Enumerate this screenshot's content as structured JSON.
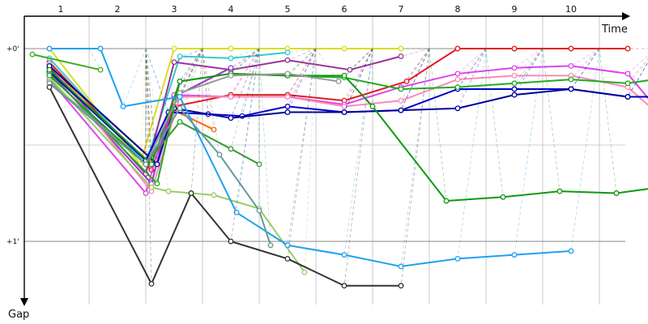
{
  "chart_data": {
    "type": "line",
    "xlabel": "Time",
    "ylabel": "Gap",
    "x_ticks": [
      "1",
      "2",
      "3",
      "4",
      "5",
      "6",
      "7",
      "8",
      "9",
      "10"
    ],
    "y_ticks": [
      "+0'",
      "+1'"
    ],
    "grid": true,
    "series": [
      {
        "color": "#e31a1c",
        "points": [
          [
            0.3,
            0.07
          ],
          [
            2.1,
            0.63
          ],
          [
            2.5,
            0.3
          ],
          [
            3.5,
            0.24
          ],
          [
            4.5,
            0.24
          ],
          [
            5.5,
            0.27
          ],
          [
            6.6,
            0.17
          ],
          [
            7.5,
            0.0
          ],
          [
            8.5,
            0.0
          ],
          [
            9.5,
            0.0
          ],
          [
            10.5,
            0.0
          ]
        ]
      },
      {
        "color": "#ff6600",
        "points": [
          [
            0.3,
            0.1
          ],
          [
            2.1,
            0.57
          ],
          [
            2.5,
            0.32
          ],
          [
            3.2,
            0.42
          ]
        ]
      },
      {
        "color": "#dddd22",
        "points": [
          [
            0.3,
            0.0
          ],
          [
            1.9,
            0.6
          ],
          [
            2.5,
            0.0
          ],
          [
            3.5,
            0.0
          ],
          [
            4.5,
            0.0
          ],
          [
            5.5,
            0.0
          ],
          [
            6.5,
            0.0
          ]
        ]
      },
      {
        "color": "#33cccc",
        "points": [
          [
            0.3,
            0.05
          ],
          [
            2.0,
            0.6
          ],
          [
            2.6,
            0.04
          ],
          [
            3.5,
            0.05
          ],
          [
            4.5,
            0.02
          ]
        ]
      },
      {
        "color": "#993399",
        "points": [
          [
            0.3,
            0.1
          ],
          [
            2.0,
            0.65
          ],
          [
            2.5,
            0.07
          ],
          [
            3.5,
            0.11
          ],
          [
            4.5,
            0.06
          ],
          [
            5.6,
            0.11
          ],
          [
            6.5,
            0.04
          ]
        ]
      },
      {
        "color": "#9933cc",
        "points": [
          [
            0.3,
            0.12
          ],
          [
            2.1,
            0.7
          ],
          [
            2.5,
            0.25
          ],
          [
            3.5,
            0.1
          ]
        ]
      },
      {
        "color": "#dd44ee",
        "points": [
          [
            0.3,
            0.16
          ],
          [
            2.0,
            0.75
          ],
          [
            2.5,
            0.24
          ],
          [
            3.5,
            0.25
          ],
          [
            4.5,
            0.25
          ],
          [
            5.5,
            0.29
          ],
          [
            6.5,
            0.2
          ],
          [
            7.5,
            0.13
          ],
          [
            8.5,
            0.1
          ],
          [
            9.5,
            0.09
          ],
          [
            10.5,
            0.13
          ],
          [
            11.2,
            0.38
          ]
        ]
      },
      {
        "color": "#ff88bb",
        "points": [
          [
            0.3,
            0.08
          ],
          [
            2.1,
            0.74
          ],
          [
            2.6,
            0.25
          ],
          [
            3.5,
            0.25
          ],
          [
            4.5,
            0.25
          ],
          [
            5.5,
            0.3
          ],
          [
            6.5,
            0.27
          ],
          [
            7.5,
            0.16
          ],
          [
            8.5,
            0.14
          ],
          [
            9.5,
            0.14
          ],
          [
            10.5,
            0.2
          ],
          [
            11.2,
            0.38
          ]
        ]
      },
      {
        "color": "#0000cc",
        "points": [
          [
            0.3,
            0.12
          ],
          [
            2.0,
            0.58
          ],
          [
            2.4,
            0.33
          ],
          [
            3.1,
            0.34
          ],
          [
            3.7,
            0.35
          ],
          [
            4.5,
            0.3
          ],
          [
            5.5,
            0.33
          ],
          [
            6.5,
            0.32
          ],
          [
            7.5,
            0.21
          ],
          [
            8.5,
            0.21
          ],
          [
            9.5,
            0.21
          ],
          [
            10.5,
            0.25
          ],
          [
            11.2,
            0.25
          ]
        ]
      },
      {
        "color": "#000099",
        "points": [
          [
            0.3,
            0.09
          ],
          [
            2.2,
            0.6
          ],
          [
            2.5,
            0.31
          ],
          [
            3.5,
            0.36
          ],
          [
            4.5,
            0.33
          ],
          [
            5.5,
            0.33
          ],
          [
            6.5,
            0.32
          ],
          [
            7.5,
            0.31
          ],
          [
            8.5,
            0.24
          ],
          [
            9.5,
            0.21
          ],
          [
            10.5,
            0.25
          ]
        ]
      },
      {
        "color": "#22aa22",
        "points": [
          [
            0.3,
            0.13
          ],
          [
            2.2,
            0.7
          ],
          [
            2.6,
            0.17
          ],
          [
            3.5,
            0.13
          ],
          [
            4.5,
            0.14
          ],
          [
            5.5,
            0.15
          ],
          [
            6.5,
            0.21
          ],
          [
            7.5,
            0.2
          ],
          [
            8.5,
            0.18
          ],
          [
            9.5,
            0.16
          ],
          [
            10.5,
            0.18
          ],
          [
            11.2,
            0.15
          ]
        ]
      },
      {
        "color": "#119911",
        "points": [
          [
            0.3,
            0.11
          ],
          [
            2.1,
            0.6
          ],
          [
            2.6,
            0.17
          ],
          [
            3.5,
            0.13
          ],
          [
            4.5,
            0.14
          ],
          [
            5.5,
            0.14
          ],
          [
            6.0,
            0.3
          ],
          [
            7.3,
            0.79
          ],
          [
            8.3,
            0.77
          ],
          [
            9.3,
            0.74
          ],
          [
            10.3,
            0.75
          ],
          [
            11.3,
            0.71
          ]
        ]
      },
      {
        "color": "#44aa22",
        "points": [
          [
            0.0,
            0.03
          ],
          [
            1.2,
            0.11
          ]
        ]
      },
      {
        "color": "#999999",
        "points": [
          [
            0.3,
            0.17
          ],
          [
            2.0,
            0.6
          ],
          [
            2.6,
            0.23
          ],
          [
            3.5,
            0.14
          ],
          [
            4.5,
            0.13
          ],
          [
            5.4,
            0.17
          ]
        ]
      },
      {
        "color": "#99cc66",
        "points": [
          [
            0.3,
            0.15
          ],
          [
            2.1,
            0.72
          ],
          [
            2.4,
            0.74
          ],
          [
            3.2,
            0.76
          ],
          [
            4.0,
            0.83
          ],
          [
            4.8,
            1.16
          ]
        ]
      },
      {
        "color": "#339933",
        "points": [
          [
            0.3,
            0.14
          ],
          [
            2.0,
            0.6
          ],
          [
            2.6,
            0.38
          ],
          [
            3.5,
            0.52
          ],
          [
            4.0,
            0.6
          ]
        ]
      },
      {
        "color": "#1da1f2",
        "points": [
          [
            0.3,
            0.0
          ],
          [
            1.2,
            0.0
          ],
          [
            1.6,
            0.3
          ],
          [
            2.6,
            0.25
          ],
          [
            3.6,
            0.85
          ],
          [
            4.5,
            1.02
          ],
          [
            5.5,
            1.07
          ],
          [
            6.5,
            1.13
          ],
          [
            7.5,
            1.09
          ],
          [
            8.5,
            1.07
          ],
          [
            9.5,
            1.05
          ]
        ]
      },
      {
        "color": "#669999",
        "points": [
          [
            0.3,
            0.18
          ],
          [
            2.0,
            0.6
          ],
          [
            2.6,
            0.31
          ],
          [
            3.3,
            0.55
          ],
          [
            4.0,
            0.84
          ],
          [
            4.2,
            1.02
          ]
        ]
      },
      {
        "color": "#333333",
        "points": [
          [
            0.3,
            0.2
          ],
          [
            2.1,
            1.22
          ],
          [
            2.8,
            0.75
          ],
          [
            3.5,
            1.0
          ],
          [
            4.5,
            1.09
          ],
          [
            5.5,
            1.23
          ],
          [
            6.5,
            1.23
          ]
        ]
      }
    ]
  }
}
